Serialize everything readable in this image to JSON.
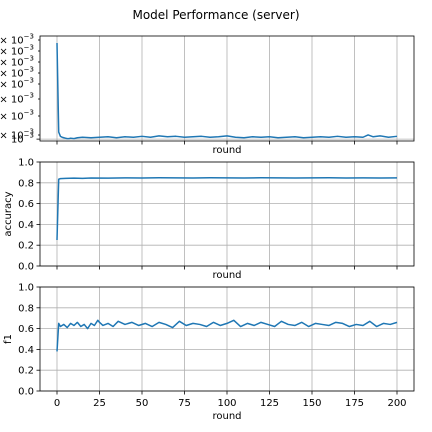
{
  "figure_title": "Model Performance (server)",
  "chart_data": [
    {
      "type": "line",
      "name": "loss",
      "title": "",
      "xlabel": "round",
      "ylabel": "",
      "xlim": [
        -10,
        210
      ],
      "ylim": [
        0.00096,
        0.0032
      ],
      "xticks": [
        0,
        25,
        50,
        75,
        100,
        125,
        150,
        175,
        200
      ],
      "show_xticklabels": false,
      "ytick_labels": [
        "10^-3",
        "× 10^-3",
        "× 10^-3",
        "× 10^-3",
        "× 10^-3",
        "× 10^-3",
        "× 10^-3",
        "× 10^-3",
        "× 10^-3"
      ],
      "grid": true,
      "color": "#1f77b4",
      "data_description": "Values estimated from gridlines; series starts near 3.05e-3 at round 0, drops to about 1.0e-3 by round 3 and stays near 1.05e-3.",
      "series": [
        {
          "x": [
            0,
            1,
            2,
            3,
            4,
            5,
            6,
            7,
            8,
            10,
            12,
            15,
            20,
            25,
            30,
            35,
            40,
            45,
            50,
            55,
            60,
            65,
            70,
            75,
            80,
            85,
            90,
            95,
            100,
            105,
            110,
            115,
            120,
            125,
            130,
            135,
            140,
            145,
            150,
            155,
            160,
            165,
            170,
            175,
            180,
            183,
            186,
            190,
            195,
            200
          ],
          "values": [
            0.00305,
            0.00115,
            0.00106,
            0.00104,
            0.00103,
            0.00102,
            0.00101,
            0.00101,
            0.00102,
            0.00101,
            0.00103,
            0.00104,
            0.00103,
            0.00104,
            0.00105,
            0.00103,
            0.00105,
            0.00104,
            0.00106,
            0.00104,
            0.00107,
            0.00105,
            0.00106,
            0.00104,
            0.00105,
            0.00106,
            0.00104,
            0.00105,
            0.00107,
            0.00104,
            0.00103,
            0.00105,
            0.00104,
            0.00105,
            0.00103,
            0.00104,
            0.00105,
            0.00103,
            0.00104,
            0.00105,
            0.00104,
            0.00106,
            0.00104,
            0.00105,
            0.00104,
            0.00109,
            0.00105,
            0.00107,
            0.00104,
            0.00106
          ]
        }
      ]
    },
    {
      "type": "line",
      "name": "accuracy",
      "title": "",
      "xlabel": "round",
      "ylabel": "accuracy",
      "xlim": [
        -10,
        210
      ],
      "ylim": [
        0.0,
        1.0
      ],
      "yticks": [
        0.0,
        0.2,
        0.4,
        0.6,
        0.8,
        1.0
      ],
      "xticks": [
        0,
        25,
        50,
        75,
        100,
        125,
        150,
        175,
        200
      ],
      "show_xticklabels": false,
      "grid": true,
      "color": "#1f77b4",
      "series": [
        {
          "x": [
            0,
            1,
            2,
            5,
            10,
            15,
            20,
            30,
            40,
            50,
            60,
            70,
            80,
            90,
            100,
            110,
            120,
            130,
            140,
            150,
            160,
            170,
            180,
            190,
            200
          ],
          "values": [
            0.25,
            0.835,
            0.84,
            0.842,
            0.845,
            0.843,
            0.846,
            0.845,
            0.847,
            0.846,
            0.848,
            0.847,
            0.846,
            0.848,
            0.847,
            0.846,
            0.848,
            0.847,
            0.846,
            0.847,
            0.848,
            0.846,
            0.847,
            0.846,
            0.847
          ]
        }
      ]
    },
    {
      "type": "line",
      "name": "f1",
      "title": "",
      "xlabel": "round",
      "ylabel": "f1",
      "xlim": [
        -10,
        210
      ],
      "ylim": [
        0.0,
        1.0
      ],
      "yticks": [
        0.0,
        0.2,
        0.4,
        0.6,
        0.8,
        1.0
      ],
      "xticks": [
        0,
        25,
        50,
        75,
        100,
        125,
        150,
        175,
        200
      ],
      "show_xticklabels": true,
      "grid": true,
      "color": "#1f77b4",
      "series": [
        {
          "x": [
            0,
            1,
            2,
            4,
            6,
            8,
            10,
            12,
            14,
            16,
            18,
            20,
            22,
            24,
            25,
            27,
            30,
            33,
            36,
            40,
            44,
            48,
            52,
            56,
            60,
            64,
            68,
            72,
            76,
            80,
            84,
            88,
            92,
            96,
            100,
            104,
            108,
            112,
            116,
            120,
            124,
            128,
            132,
            136,
            140,
            144,
            148,
            152,
            156,
            160,
            164,
            168,
            172,
            176,
            180,
            184,
            188,
            192,
            196,
            200
          ],
          "values": [
            0.38,
            0.65,
            0.62,
            0.64,
            0.61,
            0.65,
            0.63,
            0.66,
            0.62,
            0.64,
            0.6,
            0.65,
            0.63,
            0.68,
            0.66,
            0.63,
            0.65,
            0.62,
            0.67,
            0.64,
            0.66,
            0.63,
            0.65,
            0.62,
            0.66,
            0.64,
            0.61,
            0.67,
            0.63,
            0.65,
            0.64,
            0.62,
            0.66,
            0.63,
            0.65,
            0.68,
            0.62,
            0.65,
            0.63,
            0.66,
            0.64,
            0.62,
            0.67,
            0.64,
            0.63,
            0.66,
            0.62,
            0.65,
            0.64,
            0.63,
            0.66,
            0.65,
            0.62,
            0.64,
            0.63,
            0.67,
            0.62,
            0.65,
            0.64,
            0.66
          ]
        }
      ]
    }
  ]
}
